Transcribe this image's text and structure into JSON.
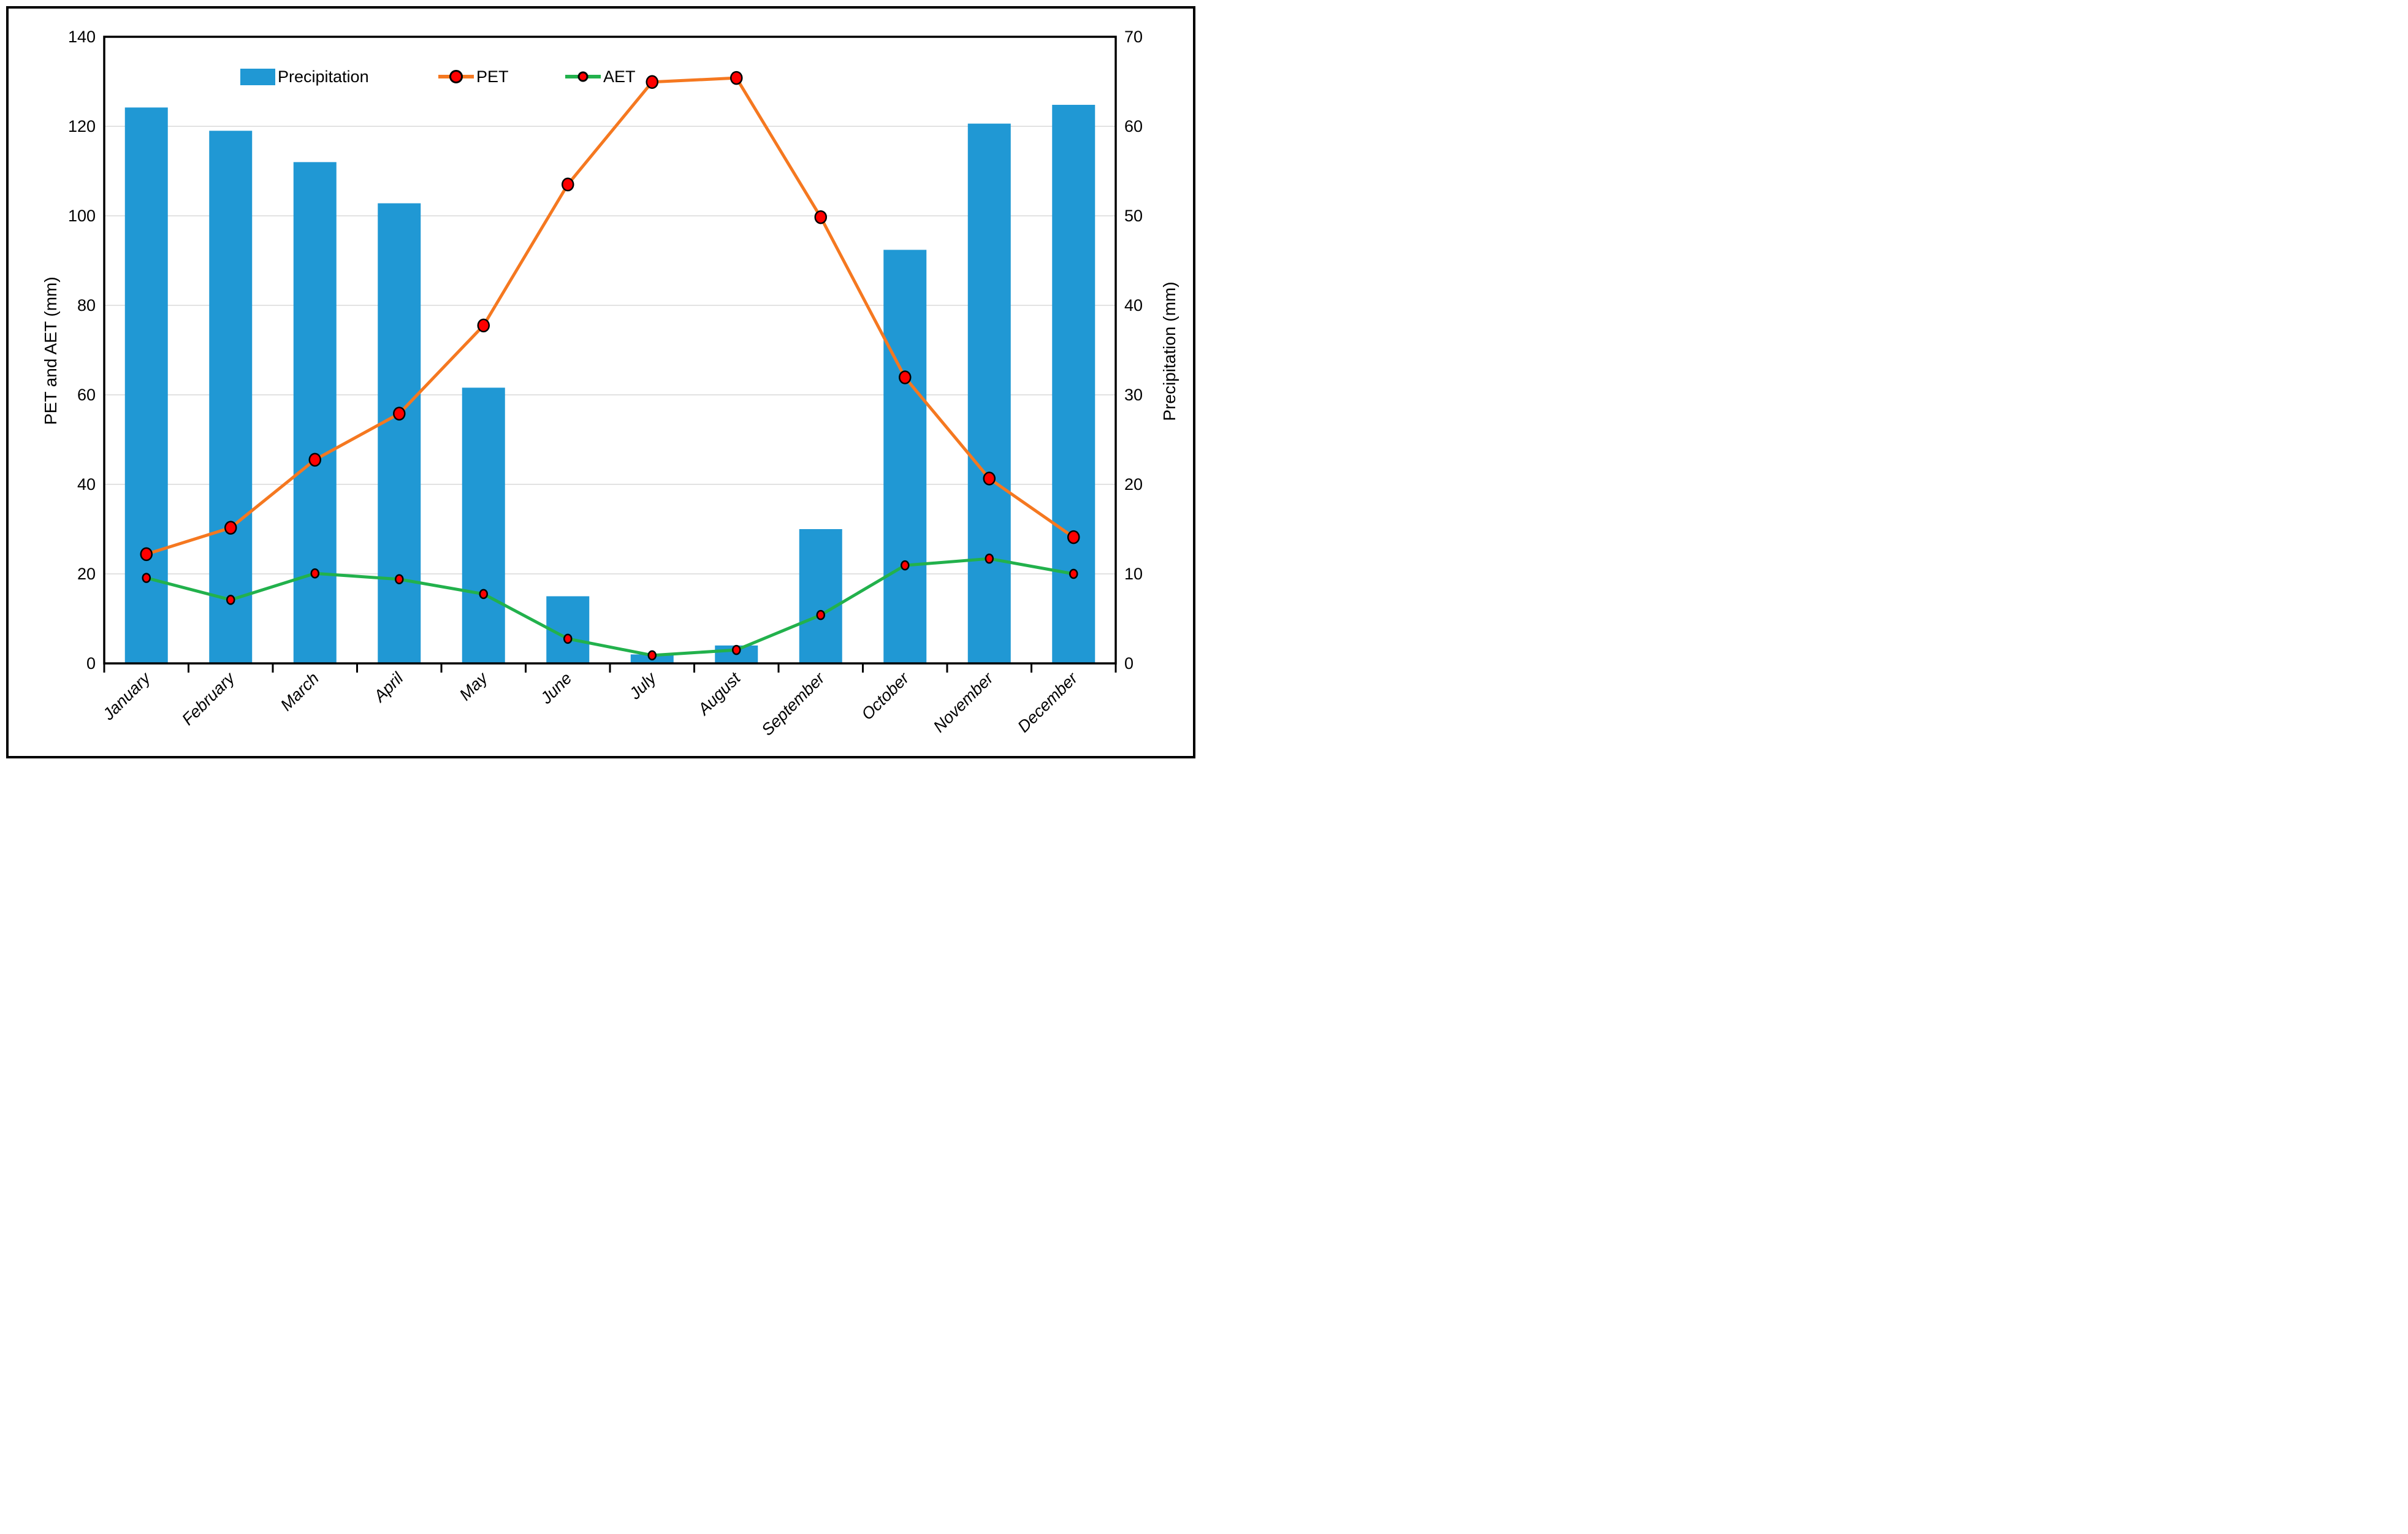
{
  "legend": {
    "items": [
      {
        "label": "Precipitation",
        "kind": "bar"
      },
      {
        "label": "PET",
        "kind": "line"
      },
      {
        "label": "AET",
        "kind": "line"
      }
    ]
  },
  "chart_data": {
    "type": "combo-bar-line",
    "categories": [
      "January",
      "February",
      "March",
      "April",
      "May",
      "June",
      "July",
      "August",
      "September",
      "October",
      "November",
      "December"
    ],
    "series": [
      {
        "name": "Precipitation",
        "type": "bar",
        "axis": "right",
        "color": "#2098d4",
        "values": [
          62.1,
          59.5,
          56.0,
          51.4,
          30.8,
          7.5,
          1.0,
          2.0,
          15.0,
          46.2,
          60.3,
          62.4
        ]
      },
      {
        "name": "PET",
        "type": "line",
        "axis": "left",
        "color": "#f57820",
        "marker_color": "#ff0000",
        "values": [
          24.4,
          30.3,
          45.5,
          55.8,
          75.5,
          107.0,
          129.9,
          130.8,
          99.7,
          63.9,
          41.3,
          28.2
        ]
      },
      {
        "name": "AET",
        "type": "line",
        "axis": "left",
        "color": "#22b14c",
        "marker_color": "#ff0000",
        "values": [
          19.1,
          14.2,
          20.1,
          18.8,
          15.5,
          5.5,
          1.8,
          3.0,
          10.8,
          21.9,
          23.4,
          20.0
        ]
      }
    ],
    "left_axis": {
      "title": "PET and AET (mm)",
      "min": 0,
      "max": 140,
      "step": 20
    },
    "right_axis": {
      "title": "Precipitation (mm)",
      "min": 0,
      "max": 70,
      "step": 10
    },
    "grid": true,
    "grid_color": "#d9d9d9",
    "frame_color": "#000000",
    "legend_position": "top-inside"
  }
}
